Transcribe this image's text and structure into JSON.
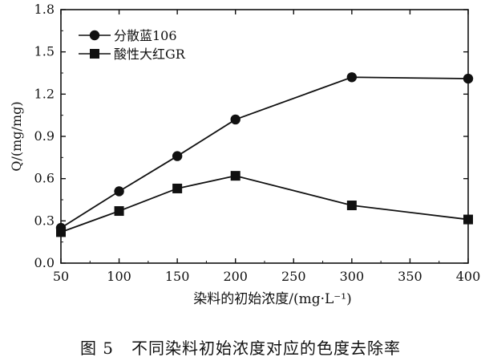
{
  "caption": {
    "label": "图 5",
    "text": "不同染料初始浓度对应的色度去除率"
  },
  "chart_data": {
    "type": "line",
    "xlabel": "染料的初始浓度/(mg·L⁻¹)",
    "ylabel": "Q/(mg/mg)",
    "xlim": [
      50,
      400
    ],
    "ylim": [
      0.0,
      1.8
    ],
    "xticks": [
      50,
      100,
      150,
      200,
      250,
      300,
      350,
      400
    ],
    "yticks": [
      0.0,
      0.3,
      0.6,
      0.9,
      1.2,
      1.5,
      1.8
    ],
    "xtick_labels": [
      "50",
      "100",
      "150",
      "200",
      "250",
      "300",
      "350",
      "400"
    ],
    "ytick_labels": [
      "0.0",
      "0.3",
      "0.6",
      "0.9",
      "1.2",
      "1.5",
      "1.8"
    ],
    "legend_position": "top-left",
    "grid": false,
    "series": [
      {
        "name": "分散蓝106",
        "marker": "circle",
        "color": "#111111",
        "x": [
          50,
          100,
          150,
          200,
          300,
          400
        ],
        "y": [
          0.25,
          0.51,
          0.76,
          1.02,
          1.32,
          1.31
        ]
      },
      {
        "name": "酸性大红GR",
        "marker": "square",
        "color": "#111111",
        "x": [
          50,
          100,
          150,
          200,
          300,
          400
        ],
        "y": [
          0.22,
          0.37,
          0.53,
          0.62,
          0.41,
          0.31
        ]
      }
    ]
  }
}
